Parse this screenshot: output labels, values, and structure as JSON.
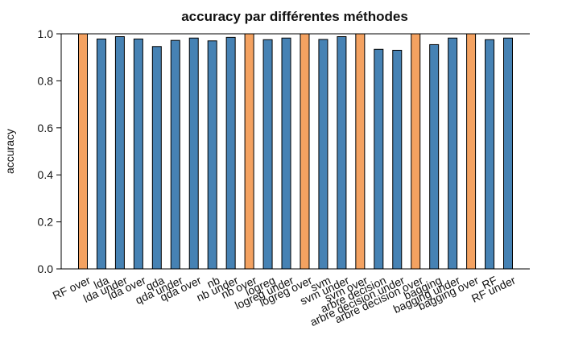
{
  "chart_data": {
    "type": "bar",
    "title": "accuracy par différentes méthodes",
    "xlabel": "",
    "ylabel": "accuracy",
    "ylim": [
      0,
      1.0
    ],
    "yticks": [
      "0.0",
      "0.2",
      "0.4",
      "0.6",
      "0.8",
      "1.0"
    ],
    "grid": false,
    "legend": "none",
    "colors": {
      "highlight": "#F4A261",
      "default": "#4682B4",
      "border": "#000000"
    },
    "categories": [
      "RF over",
      "lda",
      "lda under",
      "lda over",
      "qda",
      "qda under",
      "qda over",
      "nb",
      "nb under",
      "nb over",
      "logreg",
      "logreg under",
      "logreg over",
      "svm",
      "svm under",
      "svm over",
      "arbre decision",
      "arbre decision under",
      "arbre decision over",
      "bagging",
      "bagging under",
      "bagging over",
      "RF",
      "RF under"
    ],
    "values": [
      1.0,
      0.978,
      0.988,
      0.978,
      0.946,
      0.972,
      0.982,
      0.97,
      0.985,
      1.0,
      0.975,
      0.982,
      1.0,
      0.976,
      0.988,
      1.0,
      0.934,
      0.93,
      1.0,
      0.954,
      0.982,
      1.0,
      0.975,
      0.982
    ],
    "highlighted": [
      true,
      false,
      false,
      false,
      false,
      false,
      false,
      false,
      false,
      true,
      false,
      false,
      true,
      false,
      false,
      true,
      false,
      false,
      true,
      false,
      false,
      true,
      false,
      false
    ]
  }
}
